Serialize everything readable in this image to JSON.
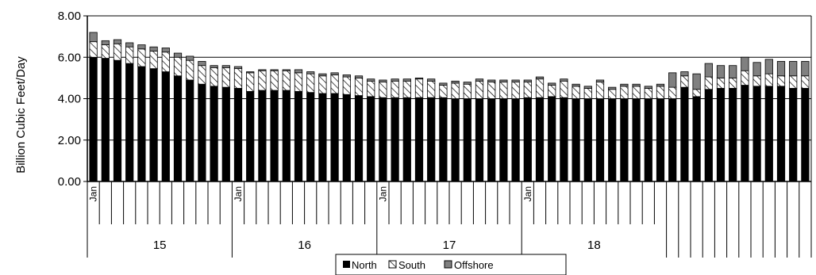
{
  "chart_data": {
    "type": "bar",
    "stacked": true,
    "ylabel": "Billion Cubic Feet/Day",
    "ylim": [
      0,
      8
    ],
    "yticks": [
      "0.00",
      "2.00",
      "4.00",
      "6.00",
      "8.00"
    ],
    "grid": "horizontal",
    "legend_position": "bottom",
    "month_labels": [
      "Jan",
      "Jan",
      "Jan",
      "Jan"
    ],
    "year_labels": [
      "15",
      "16",
      "17",
      "18"
    ],
    "x": [
      "2015-01",
      "2015-02",
      "2015-03",
      "2015-04",
      "2015-05",
      "2015-06",
      "2015-07",
      "2015-08",
      "2015-09",
      "2015-10",
      "2015-11",
      "2015-12",
      "2016-01",
      "2016-02",
      "2016-03",
      "2016-04",
      "2016-05",
      "2016-06",
      "2016-07",
      "2016-08",
      "2016-09",
      "2016-10",
      "2016-11",
      "2016-12",
      "2017-01",
      "2017-02",
      "2017-03",
      "2017-04",
      "2017-05",
      "2017-06",
      "2017-07",
      "2017-08",
      "2017-09",
      "2017-10",
      "2017-11",
      "2017-12",
      "2018-01",
      "2018-02",
      "2018-03",
      "2018-04",
      "2018-05",
      "2018-06",
      "2018-07",
      "2018-08",
      "2018-09",
      "2018-10",
      "2018-11",
      "2018-12",
      "2019-01",
      "2019-02",
      "2019-03",
      "2019-04",
      "2019-05",
      "2019-06",
      "2019-07",
      "2019-08",
      "2019-09",
      "2019-10",
      "2019-11",
      "2019-12"
    ],
    "series": [
      {
        "name": "North",
        "color": "#000000",
        "pattern": "solid",
        "values": [
          6.0,
          5.95,
          5.85,
          5.7,
          5.55,
          5.45,
          5.3,
          5.1,
          4.9,
          4.7,
          4.6,
          4.55,
          4.5,
          4.35,
          4.4,
          4.4,
          4.4,
          4.35,
          4.3,
          4.25,
          4.25,
          4.2,
          4.15,
          4.1,
          4.05,
          4.05,
          4.05,
          4.05,
          4.05,
          4.05,
          4.0,
          4.0,
          4.0,
          4.0,
          4.0,
          4.0,
          4.05,
          4.05,
          4.1,
          4.05,
          4.0,
          4.0,
          4.0,
          4.0,
          4.0,
          4.0,
          4.0,
          4.0,
          4.0,
          4.55,
          4.1,
          4.45,
          4.5,
          4.5,
          4.65,
          4.6,
          4.6,
          4.6,
          4.5,
          4.5
        ]
      },
      {
        "name": "South",
        "color": "#ffffff",
        "pattern": "diagonal-white",
        "values": [
          0.75,
          0.65,
          0.8,
          0.8,
          0.85,
          0.85,
          0.95,
          0.9,
          0.95,
          0.9,
          0.9,
          0.95,
          0.95,
          0.9,
          0.95,
          0.95,
          0.95,
          0.9,
          0.9,
          0.85,
          0.9,
          0.85,
          0.85,
          0.75,
          0.75,
          0.8,
          0.8,
          0.9,
          0.8,
          0.6,
          0.75,
          0.7,
          0.85,
          0.8,
          0.8,
          0.8,
          0.75,
          0.9,
          0.55,
          0.8,
          0.6,
          0.5,
          0.8,
          0.45,
          0.6,
          0.6,
          0.5,
          0.6,
          0.55,
          0.55,
          0.35,
          0.6,
          0.5,
          0.5,
          0.7,
          0.5,
          0.6,
          0.5,
          0.6,
          0.6
        ]
      },
      {
        "name": "Offshore",
        "color": "#808080",
        "pattern": "solid",
        "values": [
          0.45,
          0.2,
          0.2,
          0.2,
          0.2,
          0.2,
          0.2,
          0.2,
          0.2,
          0.2,
          0.1,
          0.1,
          0.1,
          0.05,
          0.05,
          0.05,
          0.05,
          0.15,
          0.1,
          0.1,
          0.1,
          0.1,
          0.1,
          0.1,
          0.1,
          0.1,
          0.1,
          0.05,
          0.1,
          0.1,
          0.1,
          0.1,
          0.1,
          0.1,
          0.1,
          0.1,
          0.1,
          0.1,
          0.1,
          0.1,
          0.1,
          0.1,
          0.1,
          0.1,
          0.1,
          0.1,
          0.1,
          0.1,
          0.7,
          0.2,
          0.75,
          0.65,
          0.6,
          0.6,
          0.65,
          0.65,
          0.7,
          0.7,
          0.7,
          0.7
        ]
      }
    ]
  }
}
